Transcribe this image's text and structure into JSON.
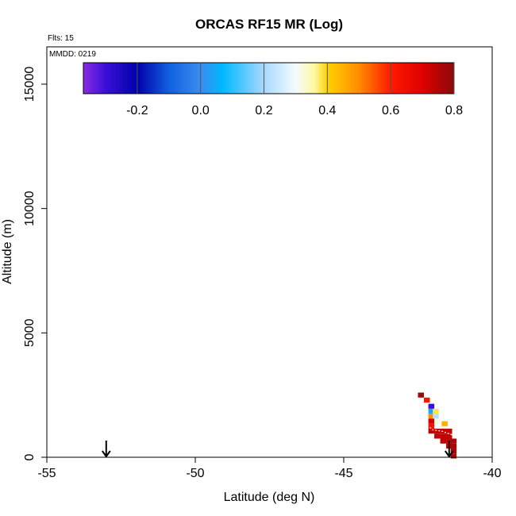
{
  "chart_data": {
    "type": "heatmap",
    "title": "ORCAS RF15 MR (Log)",
    "annotations": {
      "flights": "Flts: 15",
      "date": "MMDD: 0219"
    },
    "xlabel": "Latitude (deg N)",
    "ylabel": "Altitude (m)",
    "xlim": [
      -55,
      -40
    ],
    "ylim": [
      0,
      16500
    ],
    "x_ticks": [
      -55,
      -50,
      -45,
      -40
    ],
    "x_tick_labels": [
      "-55",
      "-50",
      "-45",
      "-40"
    ],
    "y_ticks": [
      0,
      5000,
      10000,
      15000
    ],
    "y_tick_labels": [
      "0",
      "5000",
      "10000",
      "15000"
    ],
    "colorbar": {
      "range": [
        -0.37,
        0.8
      ],
      "ticks": [
        -0.2,
        0.0,
        0.2,
        0.4,
        0.6,
        0.8
      ],
      "tick_labels": [
        "-0.2",
        "0.0",
        "0.2",
        "0.4",
        "0.6",
        "0.8"
      ],
      "stops": [
        {
          "value": -0.37,
          "color": "#8a2be2"
        },
        {
          "value": -0.3,
          "color": "#3a10d8"
        },
        {
          "value": -0.2,
          "color": "#0000a8"
        },
        {
          "value": -0.1,
          "color": "#1060e0"
        },
        {
          "value": 0.0,
          "color": "#3a8cf0"
        },
        {
          "value": 0.07,
          "color": "#00b8ff"
        },
        {
          "value": 0.2,
          "color": "#a8d8ff"
        },
        {
          "value": 0.3,
          "color": "#f4fbff"
        },
        {
          "value": 0.36,
          "color": "#fff8a0"
        },
        {
          "value": 0.4,
          "color": "#ffd200"
        },
        {
          "value": 0.5,
          "color": "#ff8c00"
        },
        {
          "value": 0.6,
          "color": "#ff1a00"
        },
        {
          "value": 0.7,
          "color": "#e00000"
        },
        {
          "value": 0.8,
          "color": "#8a0a0a"
        }
      ]
    },
    "cell_size": {
      "dlat": 0.2,
      "dalt": 200
    },
    "cells": [
      {
        "lat": -42.4,
        "alt": 2500,
        "value": 0.78
      },
      {
        "lat": -42.2,
        "alt": 2300,
        "value": 0.62
      },
      {
        "lat": -42.05,
        "alt": 2050,
        "value": -0.3
      },
      {
        "lat": -42.05,
        "alt": 1850,
        "value": 0.05
      },
      {
        "lat": -42.05,
        "alt": 1650,
        "value": 0.5
      },
      {
        "lat": -41.9,
        "alt": 1850,
        "value": 0.38
      },
      {
        "lat": -41.9,
        "alt": 1650,
        "value": 0.22
      },
      {
        "lat": -42.05,
        "alt": 1450,
        "value": 0.72
      },
      {
        "lat": -41.85,
        "alt": 1450,
        "value": 0.32
      },
      {
        "lat": -41.6,
        "alt": 1350,
        "value": 0.45
      },
      {
        "lat": -42.05,
        "alt": 1250,
        "value": 0.63
      },
      {
        "lat": -42.05,
        "alt": 1050,
        "value": 0.74
      },
      {
        "lat": -41.85,
        "alt": 1050,
        "value": 0.74
      },
      {
        "lat": -41.65,
        "alt": 1050,
        "value": 0.74
      },
      {
        "lat": -41.45,
        "alt": 1050,
        "value": 0.74
      },
      {
        "lat": -41.85,
        "alt": 850,
        "value": 0.74
      },
      {
        "lat": -41.65,
        "alt": 850,
        "value": 0.74
      },
      {
        "lat": -41.45,
        "alt": 850,
        "value": 0.74
      },
      {
        "lat": -41.65,
        "alt": 650,
        "value": 0.74
      },
      {
        "lat": -41.45,
        "alt": 650,
        "value": 0.74
      },
      {
        "lat": -41.45,
        "alt": 450,
        "value": 0.74
      },
      {
        "lat": -41.3,
        "alt": 650,
        "value": 0.76
      },
      {
        "lat": -41.3,
        "alt": 450,
        "value": 0.76
      },
      {
        "lat": -41.3,
        "alt": 250,
        "value": 0.76
      },
      {
        "lat": -41.3,
        "alt": 50,
        "value": 0.76
      }
    ],
    "flight_track": [
      {
        "lat": -42.1,
        "alt": 1200
      },
      {
        "lat": -42.0,
        "alt": 1100
      },
      {
        "lat": -41.7,
        "alt": 1050
      },
      {
        "lat": -41.35,
        "alt": 900
      }
    ],
    "markers": [
      {
        "name": "start-arrow",
        "lat": -53.0,
        "alt": 0
      },
      {
        "name": "end-arrow",
        "lat": -41.45,
        "alt": 0
      }
    ]
  }
}
